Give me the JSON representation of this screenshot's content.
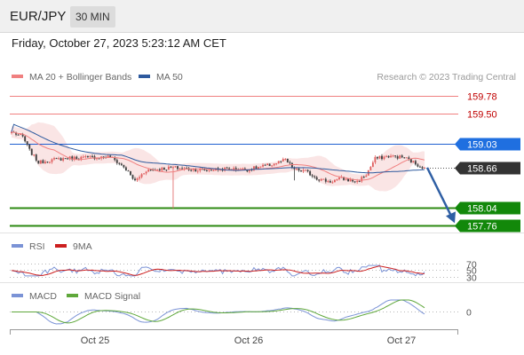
{
  "header": {
    "symbol": "EUR/JPY",
    "timeframe": "30 MIN",
    "datetime": "Friday, October 27, 2023 5:23:12 AM CET"
  },
  "colors": {
    "ma20": "#f08080",
    "ma50": "#2e5a9e",
    "bollinger_fill": "#f9dede",
    "resistance": "#f08080",
    "resistance_text": "#c00000",
    "current_line": "#1f5fd1",
    "current_badge": "#1f6fe0",
    "last_price_badge": "#333333",
    "support": "#2c8a12",
    "support_badge": "#12880a",
    "arrow": "#2f5fa4",
    "bull": "#e06060",
    "bear": "#404040",
    "rsi": "#7b93d6",
    "rsi_ma": "#cc1f1f",
    "macd": "#7b93d6",
    "macd_signal": "#5fa83b"
  },
  "chart_data": [
    {
      "type": "candlestick",
      "legend": [
        {
          "name": "MA 20 + Bollinger Bands",
          "color": "#f08080"
        },
        {
          "name": "MA 50",
          "color": "#2e5a9e"
        }
      ],
      "watermark": "Research © 2023 Trading Central",
      "x_ticks": [
        "Oct 25",
        "Oct 26",
        "Oct 27"
      ],
      "ylim": [
        157.7,
        159.95
      ],
      "levels": [
        {
          "value": 159.78,
          "label": "159.78",
          "kind": "resistance"
        },
        {
          "value": 159.5,
          "label": "159.50",
          "kind": "resistance"
        },
        {
          "value": 159.03,
          "label": "159.03",
          "kind": "current"
        },
        {
          "value": 158.66,
          "label": "158.66",
          "kind": "last"
        },
        {
          "value": 158.04,
          "label": "158.04",
          "kind": "support"
        },
        {
          "value": 157.76,
          "label": "157.76",
          "kind": "support"
        }
      ],
      "forecast_arrow": {
        "from": 158.66,
        "to": 157.82
      },
      "anchors": [
        {
          "i": 0,
          "c": 159.22
        },
        {
          "i": 5,
          "c": 159.14
        },
        {
          "i": 8,
          "c": 158.93
        },
        {
          "i": 12,
          "c": 158.74
        },
        {
          "i": 18,
          "c": 158.78
        },
        {
          "i": 25,
          "c": 158.81
        },
        {
          "i": 35,
          "c": 158.82
        },
        {
          "i": 44,
          "c": 158.83
        },
        {
          "i": 50,
          "c": 158.67
        },
        {
          "i": 55,
          "c": 158.45
        },
        {
          "i": 60,
          "c": 158.62
        },
        {
          "i": 72,
          "c": 158.66
        },
        {
          "i": 85,
          "c": 158.62
        },
        {
          "i": 95,
          "c": 158.64
        },
        {
          "i": 105,
          "c": 158.63
        },
        {
          "i": 115,
          "c": 158.7
        },
        {
          "i": 122,
          "c": 158.78
        },
        {
          "i": 126,
          "c": 158.63
        },
        {
          "i": 131,
          "c": 158.6
        },
        {
          "i": 137,
          "c": 158.48
        },
        {
          "i": 142,
          "c": 158.44
        },
        {
          "i": 147,
          "c": 158.49
        },
        {
          "i": 154,
          "c": 158.44
        },
        {
          "i": 158,
          "c": 158.55
        },
        {
          "i": 162,
          "c": 158.8
        },
        {
          "i": 168,
          "c": 158.84
        },
        {
          "i": 175,
          "c": 158.82
        },
        {
          "i": 181,
          "c": 158.7
        },
        {
          "i": 184,
          "c": 158.66
        }
      ]
    },
    {
      "type": "line",
      "legend": [
        {
          "name": "RSI",
          "color": "#7b93d6"
        },
        {
          "name": "9MA",
          "color": "#cc1f1f"
        }
      ],
      "y_ticks": [
        "70",
        "50",
        "30"
      ],
      "ylim": [
        25,
        80
      ]
    },
    {
      "type": "line",
      "legend": [
        {
          "name": "MACD",
          "color": "#7b93d6"
        },
        {
          "name": "MACD Signal",
          "color": "#5fa83b"
        }
      ],
      "y_ticks": [
        "0"
      ]
    }
  ]
}
